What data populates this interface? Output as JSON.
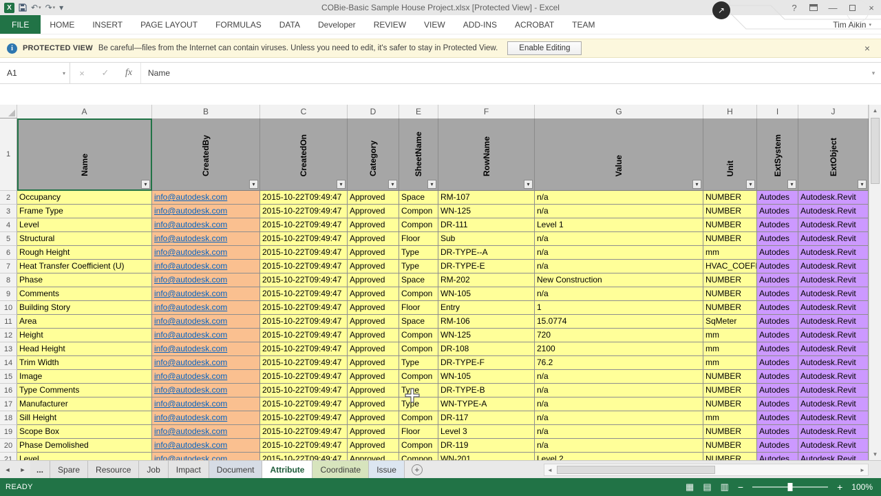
{
  "title_bar": {
    "title": "COBie-Basic Sample House Project.xlsx  [Protected View] - Excel",
    "help": "?"
  },
  "ribbon": {
    "tabs": [
      {
        "label": "FILE",
        "active": true
      },
      {
        "label": "HOME"
      },
      {
        "label": "INSERT"
      },
      {
        "label": "PAGE LAYOUT"
      },
      {
        "label": "FORMULAS"
      },
      {
        "label": "DATA"
      },
      {
        "label": "Developer"
      },
      {
        "label": "REVIEW"
      },
      {
        "label": "VIEW"
      },
      {
        "label": "ADD-INS"
      },
      {
        "label": "ACROBAT"
      },
      {
        "label": "TEAM"
      }
    ],
    "user_name": "Tim Aikin"
  },
  "protected_view": {
    "label": "PROTECTED VIEW",
    "message": "Be careful—files from the Internet can contain viruses. Unless you need to edit, it's safer to stay in Protected View.",
    "button_label": "Enable Editing"
  },
  "formula_bar": {
    "name_box": "A1",
    "fx_label": "fx",
    "content": "Name"
  },
  "grid": {
    "column_letters": [
      "A",
      "B",
      "C",
      "D",
      "E",
      "F",
      "G",
      "H",
      "I",
      "J"
    ],
    "header_row_number": "1",
    "headers": [
      "Name",
      "CreatedBy",
      "CreatedOn",
      "Category",
      "SheetName",
      "RowName",
      "Value",
      "Unit",
      "ExtSystem",
      "ExtObject"
    ],
    "header_bg": "#A6A6A6",
    "column_colors": [
      "#FFFF99",
      "#FAC090",
      "#FFFF99",
      "#FFFF99",
      "#FFFF99",
      "#FFFF99",
      "#FFFF99",
      "#FFFF99",
      "#CC99FF",
      "#CC99FF"
    ],
    "rows": [
      {
        "n": "2",
        "cells": [
          "Occupancy",
          "info@autodesk.com",
          "2015-10-22T09:49:47",
          "Approved",
          "Space",
          "RM-107",
          "n/a",
          "NUMBER",
          "Autodes",
          "Autodesk.Revit"
        ]
      },
      {
        "n": "3",
        "cells": [
          "Frame Type",
          "info@autodesk.com",
          "2015-10-22T09:49:47",
          "Approved",
          "Compon",
          "WN-125",
          "n/a",
          "NUMBER",
          "Autodes",
          "Autodesk.Revit"
        ]
      },
      {
        "n": "4",
        "cells": [
          "Level",
          "info@autodesk.com",
          "2015-10-22T09:49:47",
          "Approved",
          "Compon",
          "DR-111",
          "Level 1",
          "NUMBER",
          "Autodes",
          "Autodesk.Revit"
        ]
      },
      {
        "n": "5",
        "cells": [
          "Structural",
          "info@autodesk.com",
          "2015-10-22T09:49:47",
          "Approved",
          "Floor",
          "Sub",
          "n/a",
          "NUMBER",
          "Autodes",
          "Autodesk.Revit"
        ]
      },
      {
        "n": "6",
        "cells": [
          "Rough Height",
          "info@autodesk.com",
          "2015-10-22T09:49:47",
          "Approved",
          "Type",
          "DR-TYPE--A",
          "n/a",
          "mm",
          "Autodes",
          "Autodesk.Revit"
        ]
      },
      {
        "n": "7",
        "cells": [
          "Heat Transfer Coefficient (U)",
          "info@autodesk.com",
          "2015-10-22T09:49:47",
          "Approved",
          "Type",
          "DR-TYPE-E",
          "n/a",
          "HVAC_COEFFI",
          "Autodes",
          "Autodesk.Revit"
        ]
      },
      {
        "n": "8",
        "cells": [
          "Phase",
          "info@autodesk.com",
          "2015-10-22T09:49:47",
          "Approved",
          "Space",
          "RM-202",
          "New Construction",
          "NUMBER",
          "Autodes",
          "Autodesk.Revit"
        ]
      },
      {
        "n": "9",
        "cells": [
          "Comments",
          "info@autodesk.com",
          "2015-10-22T09:49:47",
          "Approved",
          "Compon",
          "WN-105",
          "n/a",
          "NUMBER",
          "Autodes",
          "Autodesk.Revit"
        ]
      },
      {
        "n": "10",
        "cells": [
          "Building Story",
          "info@autodesk.com",
          "2015-10-22T09:49:47",
          "Approved",
          "Floor",
          "Entry",
          "1",
          "NUMBER",
          "Autodes",
          "Autodesk.Revit"
        ]
      },
      {
        "n": "11",
        "cells": [
          "Area",
          "info@autodesk.com",
          "2015-10-22T09:49:47",
          "Approved",
          "Space",
          "RM-106",
          "15.0774",
          "SqMeter",
          "Autodes",
          "Autodesk.Revit"
        ]
      },
      {
        "n": "12",
        "cells": [
          "Height",
          "info@autodesk.com",
          "2015-10-22T09:49:47",
          "Approved",
          "Compon",
          "WN-125",
          "720",
          "mm",
          "Autodes",
          "Autodesk.Revit"
        ]
      },
      {
        "n": "13",
        "cells": [
          "Head Height",
          "info@autodesk.com",
          "2015-10-22T09:49:47",
          "Approved",
          "Compon",
          "DR-108",
          "2100",
          "mm",
          "Autodes",
          "Autodesk.Revit"
        ]
      },
      {
        "n": "14",
        "cells": [
          "Trim Width",
          "info@autodesk.com",
          "2015-10-22T09:49:47",
          "Approved",
          "Type",
          "DR-TYPE-F",
          "76.2",
          "mm",
          "Autodes",
          "Autodesk.Revit"
        ]
      },
      {
        "n": "15",
        "cells": [
          "Image",
          "info@autodesk.com",
          "2015-10-22T09:49:47",
          "Approved",
          "Compon",
          "WN-105",
          "n/a",
          "NUMBER",
          "Autodes",
          "Autodesk.Revit"
        ]
      },
      {
        "n": "16",
        "cells": [
          "Type Comments",
          "info@autodesk.com",
          "2015-10-22T09:49:47",
          "Approved",
          "Type",
          "DR-TYPE-B",
          "n/a",
          "NUMBER",
          "Autodes",
          "Autodesk.Revit"
        ]
      },
      {
        "n": "17",
        "cells": [
          "Manufacturer",
          "info@autodesk.com",
          "2015-10-22T09:49:47",
          "Approved",
          "Type",
          "WN-TYPE-A",
          "n/a",
          "NUMBER",
          "Autodes",
          "Autodesk.Revit"
        ]
      },
      {
        "n": "18",
        "cells": [
          "Sill Height",
          "info@autodesk.com",
          "2015-10-22T09:49:47",
          "Approved",
          "Compon",
          "DR-117",
          "n/a",
          "mm",
          "Autodes",
          "Autodesk.Revit"
        ]
      },
      {
        "n": "19",
        "cells": [
          "Scope Box",
          "info@autodesk.com",
          "2015-10-22T09:49:47",
          "Approved",
          "Floor",
          "Level 3",
          "n/a",
          "NUMBER",
          "Autodes",
          "Autodesk.Revit"
        ]
      },
      {
        "n": "20",
        "cells": [
          "Phase Demolished",
          "info@autodesk.com",
          "2015-10-22T09:49:47",
          "Approved",
          "Compon",
          "DR-119",
          "n/a",
          "NUMBER",
          "Autodes",
          "Autodesk.Revit"
        ]
      },
      {
        "n": "21",
        "cells": [
          "Level",
          "info@autodesk.com",
          "2015-10-22T09:49:47",
          "Approved",
          "Compon",
          "WN-201",
          "Level 2",
          "NUMBER",
          "Autodes",
          "Autodesk.Revit"
        ]
      }
    ]
  },
  "sheet_tabs": {
    "overflow": "...",
    "tabs": [
      {
        "label": "Spare",
        "color": "#E4E4E4"
      },
      {
        "label": "Resource",
        "color": "#E4E4E4"
      },
      {
        "label": "Job",
        "color": "#E4E4E4"
      },
      {
        "label": "Impact",
        "color": "#E4E4E4"
      },
      {
        "label": "Document",
        "color": "#D6DCE5"
      },
      {
        "label": "Attribute",
        "active": true,
        "color": "#FFFFFF"
      },
      {
        "label": "Coordinate",
        "color": "#D7E4BD"
      },
      {
        "label": "Issue",
        "color": "#DCE6F1"
      }
    ]
  },
  "status_bar": {
    "mode": "READY",
    "zoom": "100%"
  },
  "colors": {
    "accent_green": "#217346",
    "yellow_cell": "#FFFF99",
    "salmon_cell": "#FAC090",
    "purple_cell": "#CC99FF",
    "link_blue": "#0563C1"
  }
}
